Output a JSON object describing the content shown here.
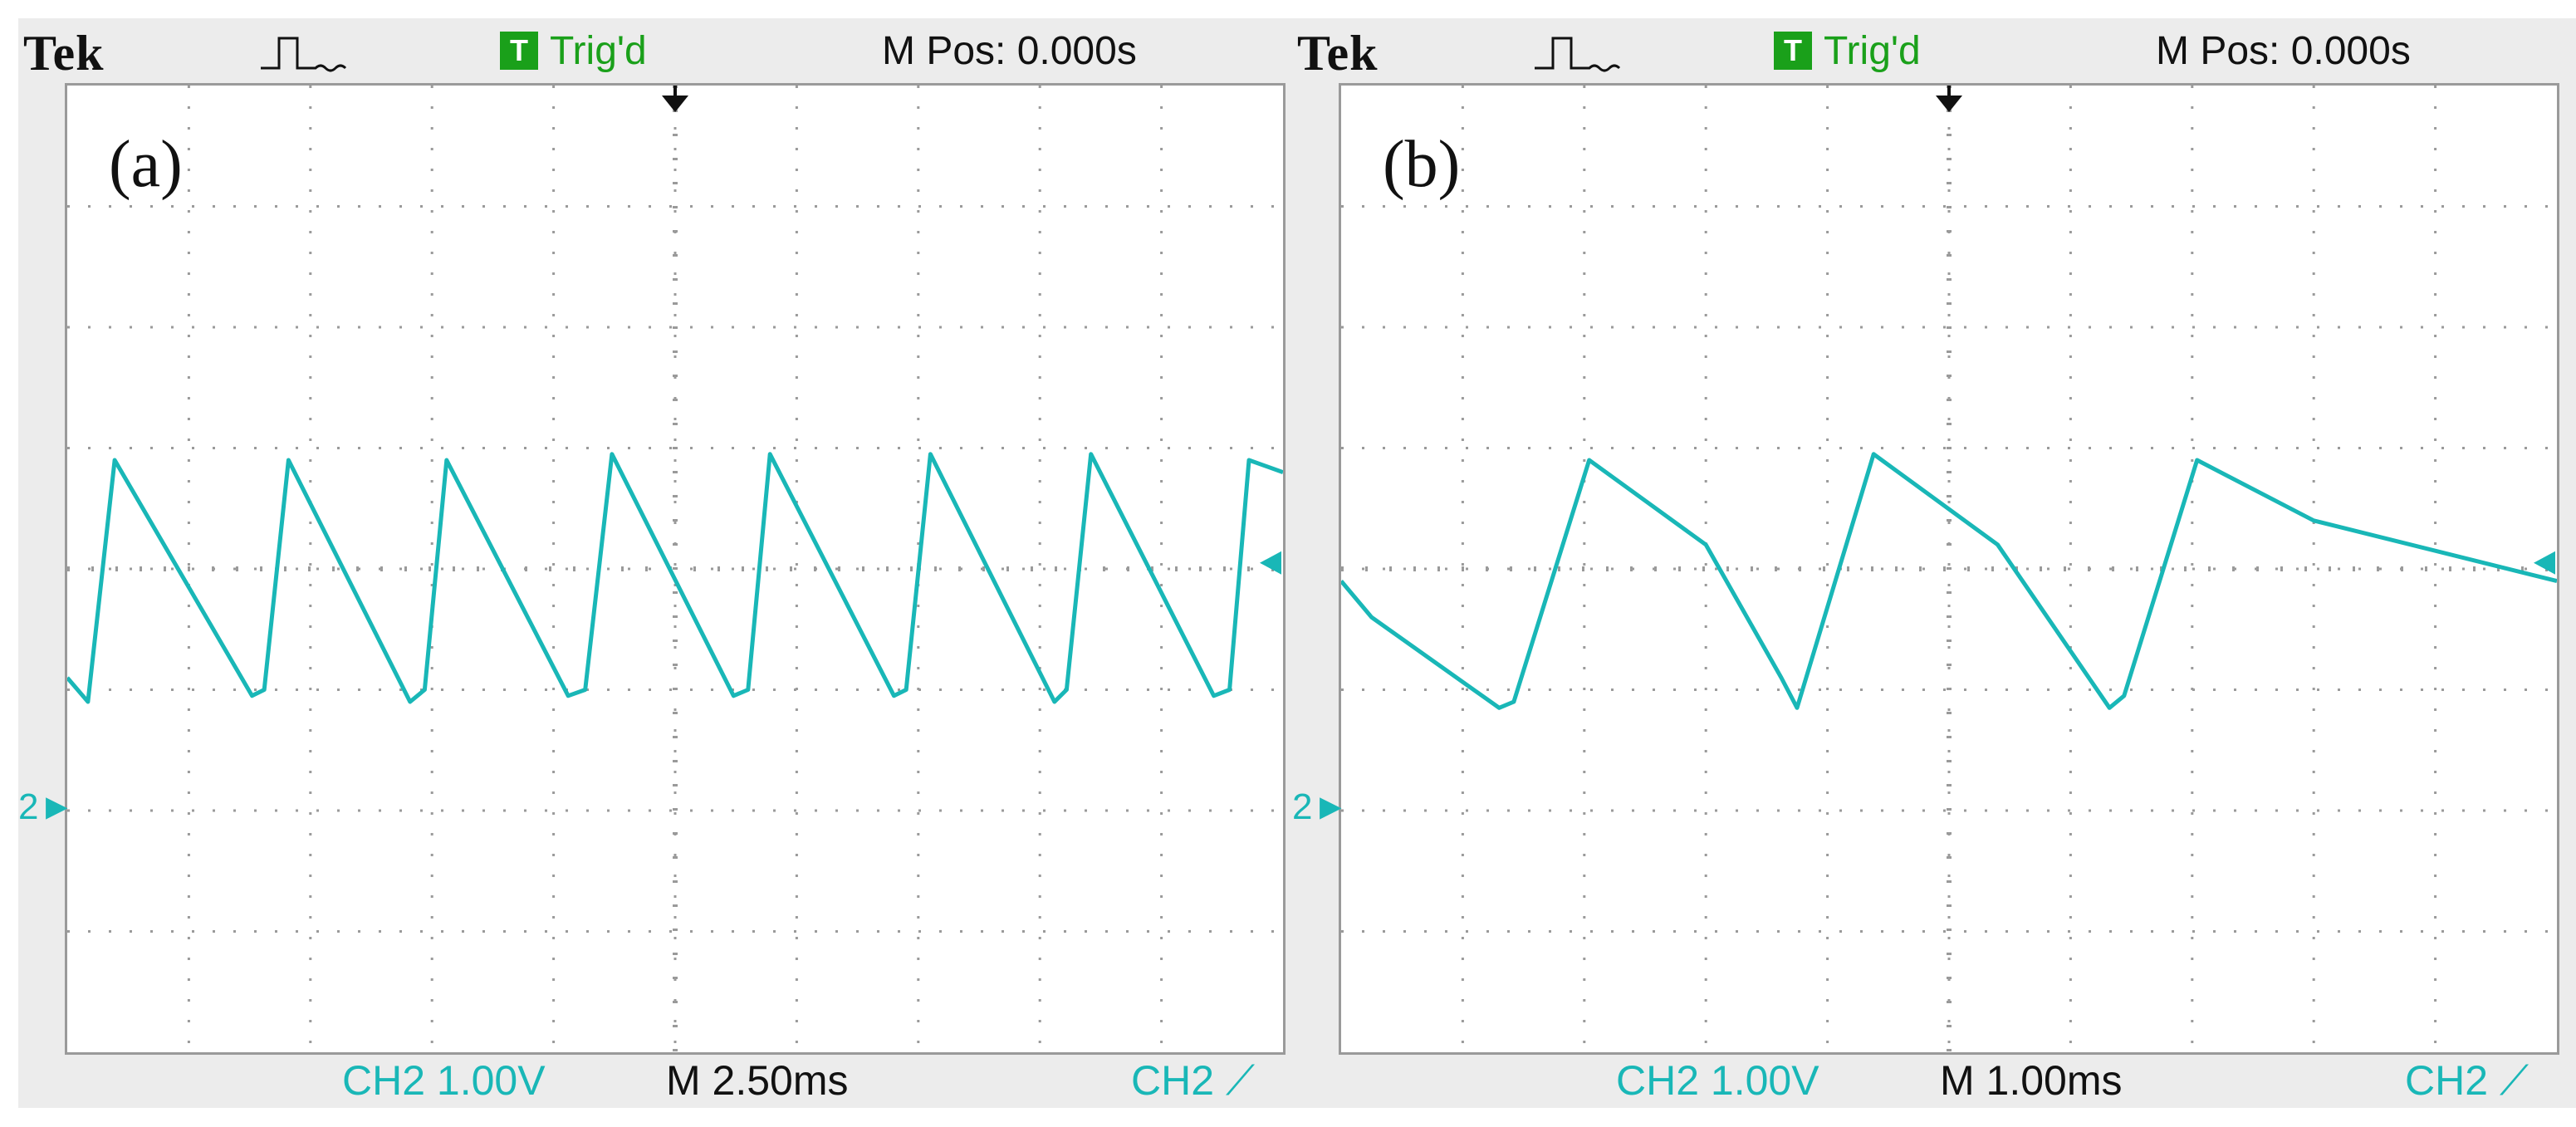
{
  "panels": [
    {
      "label": "(a)",
      "brand": "Tek",
      "trigger_badge": "T",
      "trigger_status": "Trig'd",
      "m_pos": "M Pos: 0.000s",
      "channel_marker": "2",
      "channel_scale": "CH2  1.00V",
      "timebase": "M 2.50ms",
      "trigger_source": "CH2"
    },
    {
      "label": "(b)",
      "brand": "Tek",
      "trigger_badge": "T",
      "trigger_status": "Trig'd",
      "m_pos": "M Pos: 0.000s",
      "channel_marker": "2",
      "channel_scale": "CH2  1.00V",
      "timebase": "M 1.00ms",
      "trigger_source": "CH2"
    }
  ],
  "colors": {
    "trace": "#19b7b7",
    "trigger_badge": "#1aa01a",
    "grid": "#9a9a9a"
  },
  "chart_data": [
    {
      "type": "line",
      "grid": true,
      "x_unit": "div",
      "y_unit": "div",
      "xlim": [
        0,
        10
      ],
      "ylim": [
        0,
        8
      ],
      "series": [
        {
          "x": [
            0,
            0.17,
            0.39,
            1.52,
            1.62,
            1.82,
            2.82,
            2.94,
            3.12,
            4.12,
            4.26,
            4.48,
            5.48,
            5.6,
            5.78,
            6.8,
            6.9,
            7.1,
            8.12,
            8.22,
            8.42,
            9.43,
            9.56,
            9.72,
            10.0
          ],
          "y": [
            3.1,
            2.9,
            4.9,
            2.95,
            3.0,
            4.9,
            2.9,
            3.0,
            4.9,
            2.95,
            3.0,
            4.95,
            2.95,
            3.0,
            4.95,
            2.95,
            3.0,
            4.95,
            2.9,
            3.0,
            4.95,
            2.95,
            3.0,
            4.9,
            4.8
          ]
        }
      ]
    },
    {
      "type": "line",
      "grid": true,
      "x_unit": "div",
      "y_unit": "div",
      "xlim": [
        0,
        10
      ],
      "ylim": [
        0,
        8
      ],
      "series": [
        {
          "x": [
            0,
            0.25,
            1.3,
            1.42,
            2.04,
            3.0,
            3.62,
            3.75,
            4.38,
            5.4,
            6.32,
            6.44,
            7.04,
            8.0,
            10.0
          ],
          "y": [
            3.9,
            3.6,
            2.85,
            2.9,
            4.9,
            4.2,
            3.1,
            2.85,
            4.95,
            4.2,
            2.85,
            2.95,
            4.9,
            4.4,
            3.9
          ]
        }
      ]
    }
  ]
}
